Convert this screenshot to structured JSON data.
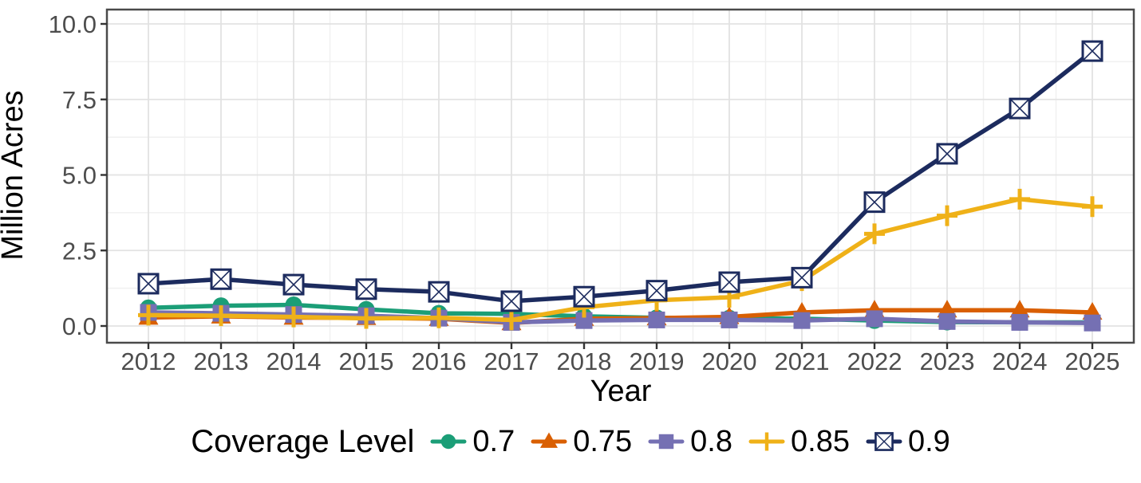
{
  "chart_data": {
    "type": "line",
    "title": "",
    "xlabel": "Year",
    "ylabel": "Million Acres",
    "legend_title": "Coverage Level",
    "legend_position": "bottom",
    "grid": true,
    "background": "#ffffff",
    "panel_border_color": "#4a4a4a",
    "grid_major_color": "#e2e2e2",
    "grid_minor_color": "#f0f0f0",
    "tick_color": "#333333",
    "tick_label_color": "#4d4d4d",
    "axis_title_color": "#000000",
    "x": [
      2012,
      2013,
      2014,
      2015,
      2016,
      2017,
      2018,
      2019,
      2020,
      2021,
      2022,
      2023,
      2024,
      2025
    ],
    "x_tick_labels": [
      "2012",
      "2013",
      "2014",
      "2015",
      "2016",
      "2017",
      "2018",
      "2019",
      "2020",
      "2021",
      "2022",
      "2023",
      "2024",
      "2025"
    ],
    "y_ticks": [
      0.0,
      2.5,
      5.0,
      7.5,
      10.0
    ],
    "y_tick_labels": [
      "0.0",
      "2.5",
      "5.0",
      "7.5",
      "10.0"
    ],
    "y_minor_ticks": [
      1.25,
      3.75,
      6.25,
      8.75
    ],
    "ylim": [
      0,
      10.5
    ],
    "series": [
      {
        "name": "0.7",
        "color": "#1B9E77",
        "marker": "circle",
        "values": [
          0.6,
          0.67,
          0.7,
          0.55,
          0.42,
          0.4,
          0.32,
          0.27,
          0.26,
          0.24,
          0.18,
          0.13,
          0.12,
          0.12
        ]
      },
      {
        "name": "0.75",
        "color": "#D95F02",
        "marker": "triangle",
        "values": [
          0.28,
          0.32,
          0.28,
          0.27,
          0.24,
          0.1,
          0.24,
          0.26,
          0.3,
          0.45,
          0.52,
          0.52,
          0.52,
          0.45
        ]
      },
      {
        "name": "0.8",
        "color": "#7570B3",
        "marker": "square",
        "values": [
          0.45,
          0.42,
          0.38,
          0.34,
          0.26,
          0.12,
          0.18,
          0.2,
          0.2,
          0.18,
          0.24,
          0.15,
          0.12,
          0.1
        ]
      },
      {
        "name": "0.85",
        "color": "#EFB118",
        "marker": "plus",
        "values": [
          0.36,
          0.34,
          0.3,
          0.25,
          0.27,
          0.2,
          0.62,
          0.85,
          0.95,
          1.5,
          3.05,
          3.65,
          4.2,
          3.95
        ],
        "errors": [
          0.08,
          0.12,
          0.1,
          0.28,
          0.06,
          0.35,
          0.08,
          0.15,
          0.08,
          0.28,
          0.12,
          0.33,
          0.12,
          0.28
        ]
      },
      {
        "name": "0.9",
        "color": "#1C2B5E",
        "marker": "square-x",
        "values": [
          1.4,
          1.55,
          1.37,
          1.22,
          1.13,
          0.82,
          0.97,
          1.17,
          1.45,
          1.6,
          4.1,
          5.7,
          7.2,
          9.1
        ]
      }
    ]
  }
}
